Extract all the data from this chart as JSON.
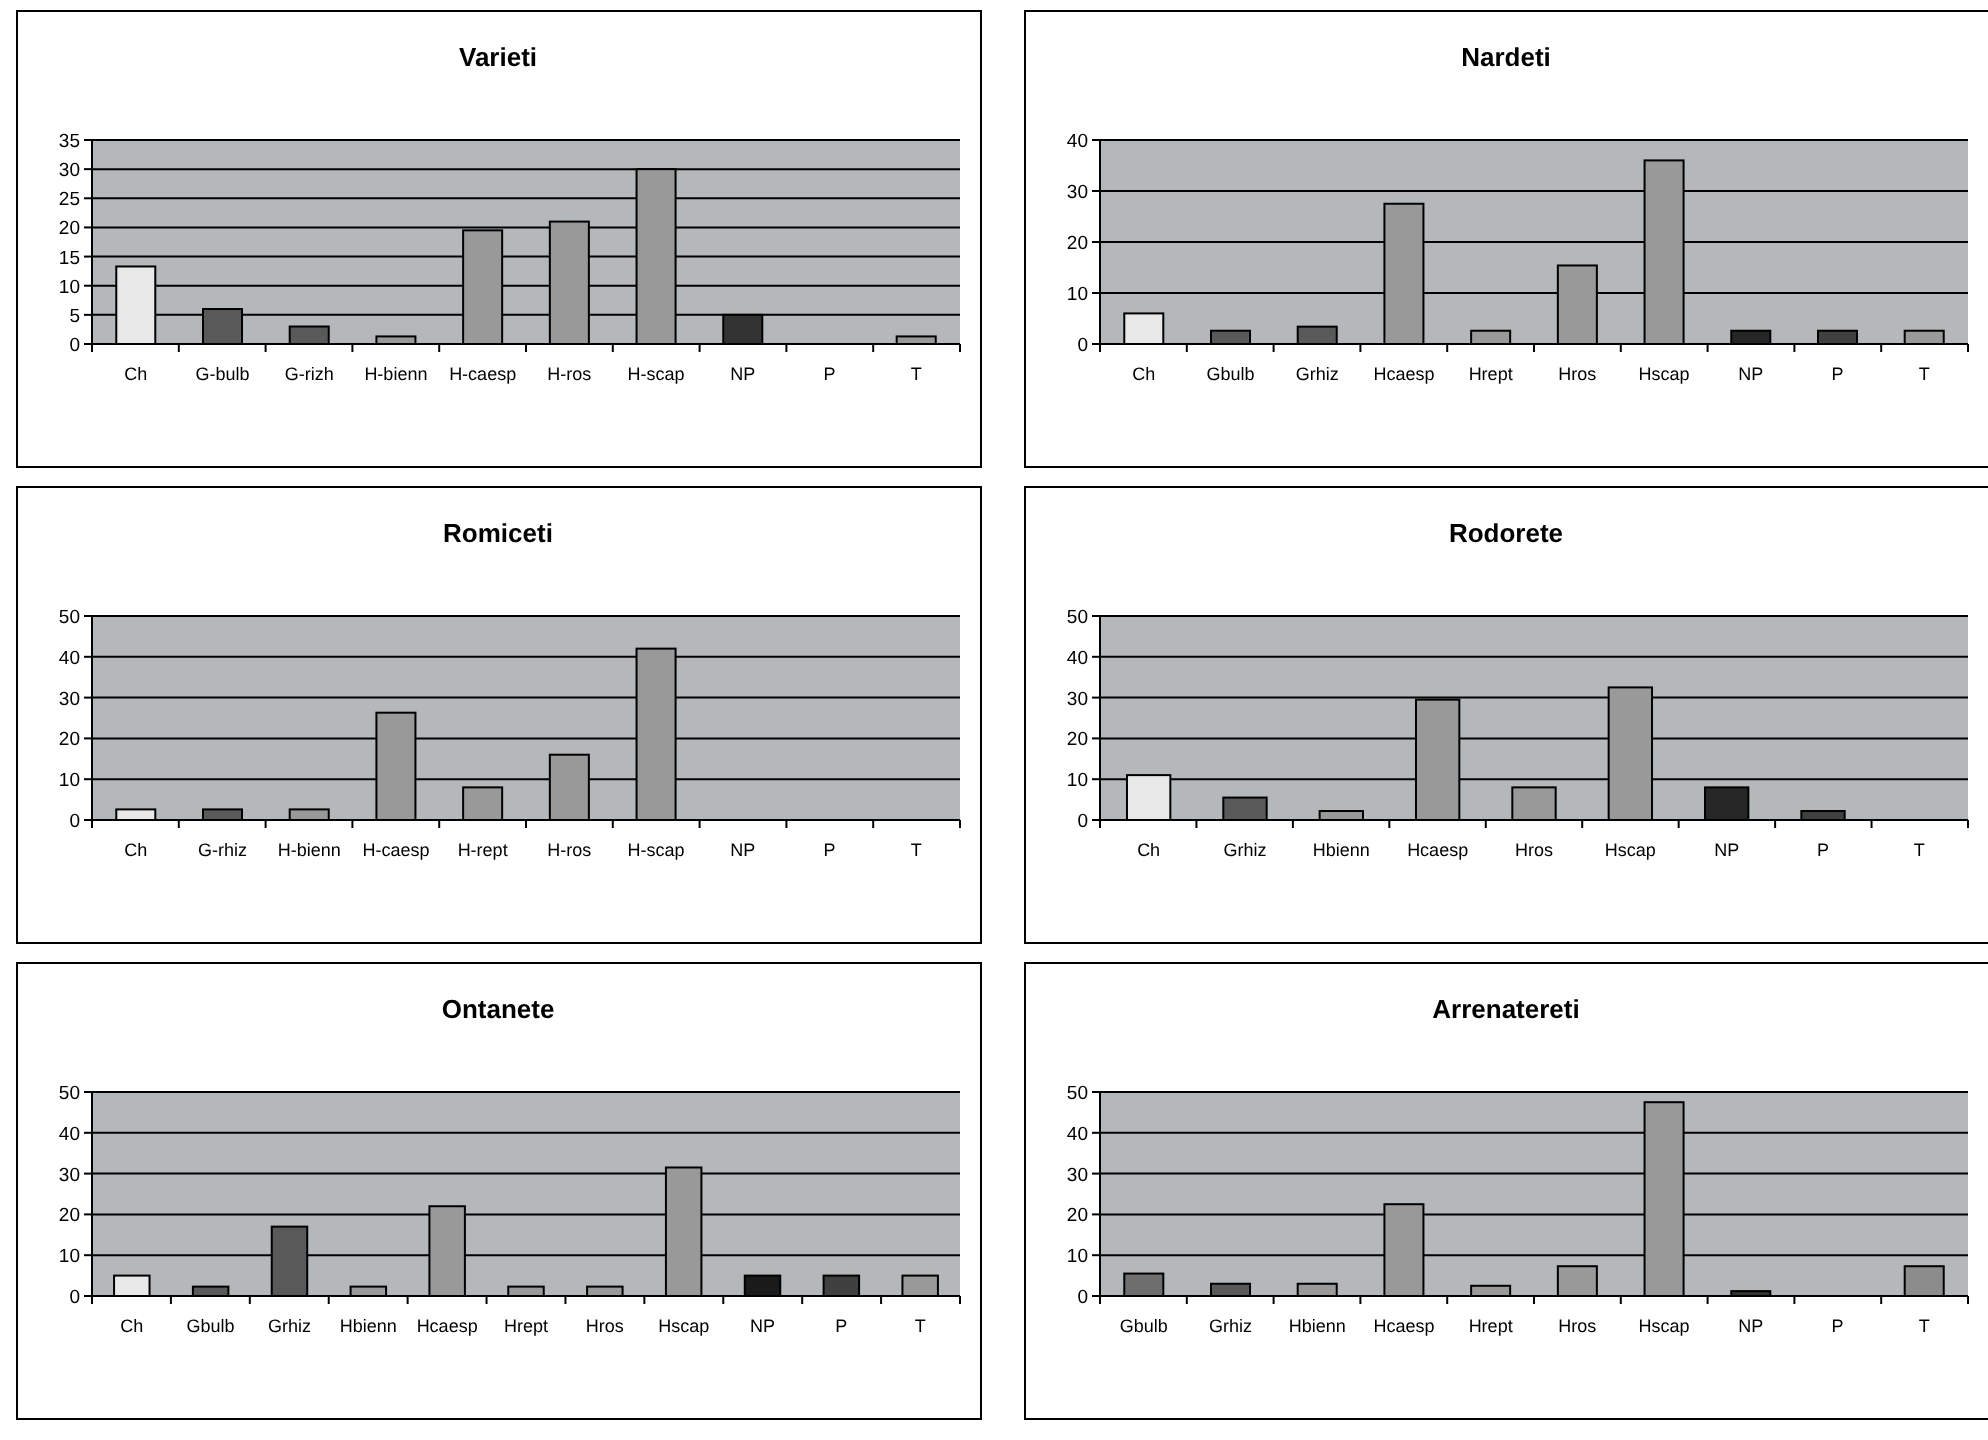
{
  "chart_data": [
    {
      "type": "bar",
      "title": "Varieti",
      "categories": [
        "Ch",
        "G-bulb",
        "G-rizh",
        "H-bienn",
        "H-caesp",
        "H-ros",
        "H-scap",
        "NP",
        "P",
        "T"
      ],
      "values": [
        13.3,
        6,
        3,
        1.3,
        19.5,
        21,
        30,
        5,
        0,
        1.3
      ],
      "colors": [
        "#e8e8e8",
        "#595959",
        "#595959",
        "#999999",
        "#999999",
        "#999999",
        "#999999",
        "#333333",
        "#404040",
        "#999999"
      ],
      "ylim": [
        0,
        35
      ],
      "yticks": [
        0,
        5,
        10,
        15,
        20,
        25,
        30,
        35
      ],
      "grid": "y"
    },
    {
      "type": "bar",
      "title": "Nardeti",
      "categories": [
        "Ch",
        "Gbulb",
        "Grhiz",
        "Hcaesp",
        "Hrept",
        "Hros",
        "Hscap",
        "NP",
        "P",
        "T"
      ],
      "values": [
        6,
        2.6,
        3.4,
        27.5,
        2.6,
        15.4,
        36,
        2.6,
        2.6,
        2.6
      ],
      "colors": [
        "#e8e8e8",
        "#595959",
        "#595959",
        "#999999",
        "#999999",
        "#999999",
        "#999999",
        "#262626",
        "#404040",
        "#999999"
      ],
      "ylim": [
        0,
        40
      ],
      "yticks": [
        0,
        10,
        20,
        30,
        40
      ],
      "grid": "y"
    },
    {
      "type": "bar",
      "title": "Romiceti",
      "categories": [
        "Ch",
        "G-rhiz",
        "H-bienn",
        "H-caesp",
        "H-rept",
        "H-ros",
        "H-scap",
        "NP",
        "P",
        "T"
      ],
      "values": [
        2.6,
        2.6,
        2.6,
        26.3,
        8,
        16,
        42,
        0,
        0,
        0
      ],
      "colors": [
        "#e8e8e8",
        "#595959",
        "#999999",
        "#999999",
        "#999999",
        "#999999",
        "#999999",
        "#262626",
        "#404040",
        "#999999"
      ],
      "ylim": [
        0,
        50
      ],
      "yticks": [
        0,
        10,
        20,
        30,
        40,
        50
      ],
      "grid": "y"
    },
    {
      "type": "bar",
      "title": "Rodorete",
      "categories": [
        "Ch",
        "Grhiz",
        "Hbienn",
        "Hcaesp",
        "Hros",
        "Hscap",
        "NP",
        "P",
        "T"
      ],
      "values": [
        11,
        5.5,
        2.2,
        29.5,
        8,
        32.5,
        8,
        2.2,
        0
      ],
      "colors": [
        "#e8e8e8",
        "#595959",
        "#999999",
        "#999999",
        "#999999",
        "#999999",
        "#262626",
        "#404040",
        "#999999"
      ],
      "ylim": [
        0,
        50
      ],
      "yticks": [
        0,
        10,
        20,
        30,
        40,
        50
      ],
      "grid": "y"
    },
    {
      "type": "bar",
      "title": "Ontanete",
      "categories": [
        "Ch",
        "Gbulb",
        "Grhiz",
        "Hbienn",
        "Hcaesp",
        "Hrept",
        "Hros",
        "Hscap",
        "NP",
        "P",
        "T"
      ],
      "values": [
        5,
        2.3,
        17,
        2.3,
        22,
        2.3,
        2.3,
        31.5,
        5,
        5,
        5
      ],
      "colors": [
        "#e8e8e8",
        "#595959",
        "#595959",
        "#999999",
        "#999999",
        "#999999",
        "#999999",
        "#999999",
        "#1a1a1a",
        "#404040",
        "#999999"
      ],
      "ylim": [
        0,
        50
      ],
      "yticks": [
        0,
        10,
        20,
        30,
        40,
        50
      ],
      "grid": "y"
    },
    {
      "type": "bar",
      "title": "Arrenatereti",
      "categories": [
        "Gbulb",
        "Grhiz",
        "Hbienn",
        "Hcaesp",
        "Hrept",
        "Hros",
        "Hscap",
        "NP",
        "P",
        "T"
      ],
      "values": [
        5.5,
        3,
        3,
        22.5,
        2.5,
        7.3,
        47.5,
        1.2,
        0,
        7.3
      ],
      "colors": [
        "#6e6e6e",
        "#595959",
        "#999999",
        "#999999",
        "#999999",
        "#999999",
        "#999999",
        "#333333",
        "#404040",
        "#8c8c8c"
      ],
      "ylim": [
        0,
        50
      ],
      "yticks": [
        0,
        10,
        20,
        30,
        40,
        50
      ],
      "grid": "y"
    }
  ]
}
